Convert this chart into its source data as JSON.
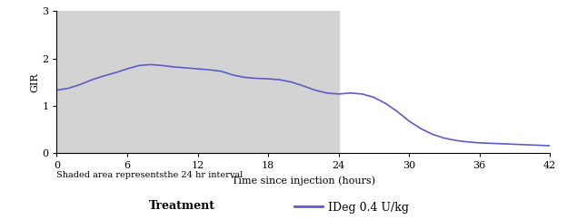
{
  "title": "",
  "xlabel": "Time since injection (hours)",
  "ylabel": "GIR",
  "xlim": [
    0,
    42
  ],
  "ylim": [
    0,
    3
  ],
  "xticks": [
    0,
    6,
    12,
    18,
    24,
    30,
    36,
    42
  ],
  "yticks": [
    0,
    1,
    2,
    3
  ],
  "shade_start": 0,
  "shade_end": 24,
  "shade_color": "#d3d3d3",
  "line_color": "#5b5bcc",
  "line_width": 1.2,
  "shade_label": "Shaded area representsthe 24 hr interval",
  "legend_label": "IDeg 0.4 U/kg",
  "legend_title": "Treatment",
  "x": [
    0,
    1,
    2,
    3,
    4,
    5,
    6,
    7,
    8,
    9,
    10,
    11,
    12,
    13,
    14,
    15,
    16,
    17,
    18,
    19,
    20,
    21,
    22,
    23,
    24,
    25,
    26,
    27,
    28,
    29,
    30,
    31,
    32,
    33,
    34,
    35,
    36,
    37,
    38,
    39,
    40,
    41,
    42
  ],
  "y": [
    1.33,
    1.37,
    1.45,
    1.55,
    1.63,
    1.7,
    1.78,
    1.85,
    1.87,
    1.85,
    1.82,
    1.8,
    1.78,
    1.76,
    1.73,
    1.65,
    1.6,
    1.58,
    1.57,
    1.55,
    1.5,
    1.42,
    1.33,
    1.27,
    1.25,
    1.27,
    1.25,
    1.18,
    1.05,
    0.88,
    0.68,
    0.52,
    0.4,
    0.32,
    0.27,
    0.24,
    0.22,
    0.21,
    0.2,
    0.19,
    0.18,
    0.17,
    0.16
  ],
  "background_color": "#ffffff",
  "font_family": "DejaVu Serif"
}
